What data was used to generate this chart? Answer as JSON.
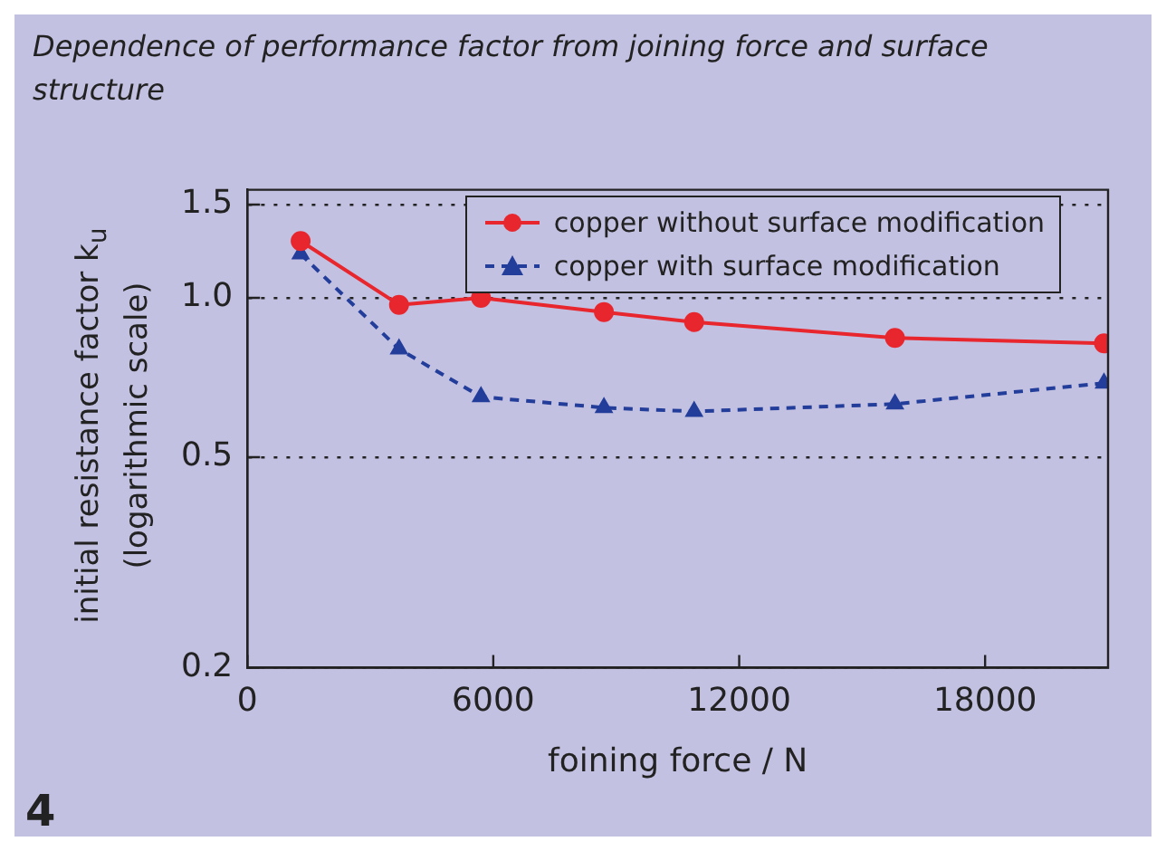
{
  "chart_data": {
    "type": "line",
    "title": "Dependence of performance factor from joining force and surface structure",
    "xlabel": "foining force / N",
    "ylabel": "initial resistance factor k$_{u}$ (logarithmic scale)",
    "x": [
      1300,
      3700,
      5700,
      8700,
      10900,
      15800,
      20900
    ],
    "series": [
      {
        "name": "copper without surface modification",
        "color": "#e8262d",
        "marker": "circle",
        "line_style": "solid",
        "values": [
          1.28,
          0.97,
          1.0,
          0.94,
          0.9,
          0.84,
          0.82
        ]
      },
      {
        "name": "copper with surface modification",
        "color": "#233d9b",
        "marker": "triangle",
        "line_style": "dashed",
        "values": [
          1.21,
          0.8,
          0.65,
          0.62,
          0.61,
          0.63,
          0.69
        ]
      }
    ],
    "xlim": [
      0,
      21000
    ],
    "xticks": [
      0,
      6000,
      12000,
      18000
    ],
    "ylim": [
      0.2,
      1.6
    ],
    "yticks": [
      0.2,
      0.5,
      {
        "value": 1.0,
        "label": "1.0"
      },
      1.5
    ],
    "log": "y",
    "grid": "y",
    "legend": "top right",
    "annotations": [
      "4"
    ]
  }
}
